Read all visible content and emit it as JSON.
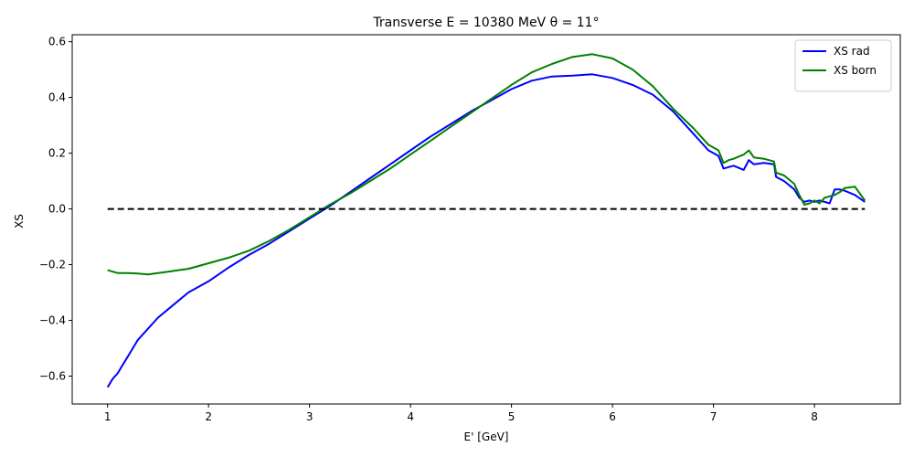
{
  "chart_data": {
    "type": "line",
    "title": "Transverse E = 10380 MeV θ = 11°",
    "xlabel": "E' [GeV]",
    "ylabel": "XS",
    "xlim": [
      0.65,
      8.85
    ],
    "ylim": [
      -0.7,
      0.625
    ],
    "xticks": [
      1,
      2,
      3,
      4,
      5,
      6,
      7,
      8
    ],
    "yticks": [
      -0.6,
      -0.4,
      -0.2,
      0.0,
      0.2,
      0.4,
      0.6
    ],
    "ytick_labels": [
      "−0.6",
      "−0.4",
      "−0.2",
      "0.0",
      "0.2",
      "0.4",
      "0.6"
    ],
    "grid": false,
    "legend_position": "top-right",
    "series": [
      {
        "name": "XS rad",
        "color": "#0000ff",
        "x": [
          1.0,
          1.05,
          1.1,
          1.15,
          1.2,
          1.3,
          1.4,
          1.5,
          1.6,
          1.7,
          1.8,
          1.9,
          2.0,
          2.2,
          2.4,
          2.6,
          2.8,
          3.0,
          3.2,
          3.4,
          3.6,
          3.8,
          4.0,
          4.2,
          4.4,
          4.6,
          4.8,
          5.0,
          5.2,
          5.4,
          5.6,
          5.8,
          6.0,
          6.2,
          6.4,
          6.6,
          6.8,
          6.95,
          7.05,
          7.1,
          7.15,
          7.2,
          7.3,
          7.35,
          7.4,
          7.5,
          7.6,
          7.62,
          7.7,
          7.8,
          7.85,
          7.9,
          7.95,
          8.0,
          8.05,
          8.1,
          8.15,
          8.2,
          8.25,
          8.3,
          8.4,
          8.5
        ],
        "y": [
          -0.64,
          -0.61,
          -0.59,
          -0.56,
          -0.53,
          -0.47,
          -0.43,
          -0.39,
          -0.36,
          -0.33,
          -0.3,
          -0.28,
          -0.26,
          -0.21,
          -0.165,
          -0.125,
          -0.08,
          -0.035,
          0.01,
          0.06,
          0.11,
          0.16,
          0.21,
          0.26,
          0.305,
          0.35,
          0.39,
          0.43,
          0.46,
          0.475,
          0.478,
          0.483,
          0.47,
          0.445,
          0.41,
          0.35,
          0.27,
          0.21,
          0.19,
          0.145,
          0.15,
          0.155,
          0.14,
          0.175,
          0.16,
          0.165,
          0.16,
          0.115,
          0.1,
          0.07,
          0.04,
          0.025,
          0.03,
          0.025,
          0.03,
          0.025,
          0.02,
          0.07,
          0.07,
          0.065,
          0.05,
          0.025
        ]
      },
      {
        "name": "XS born",
        "color": "#008000",
        "x": [
          1.0,
          1.05,
          1.1,
          1.2,
          1.3,
          1.4,
          1.5,
          1.6,
          1.7,
          1.8,
          1.9,
          2.0,
          2.2,
          2.4,
          2.6,
          2.8,
          3.0,
          3.2,
          3.4,
          3.6,
          3.8,
          4.0,
          4.2,
          4.4,
          4.6,
          4.8,
          5.0,
          5.2,
          5.4,
          5.6,
          5.8,
          6.0,
          6.2,
          6.4,
          6.6,
          6.8,
          6.95,
          7.05,
          7.1,
          7.15,
          7.2,
          7.3,
          7.35,
          7.4,
          7.5,
          7.6,
          7.62,
          7.7,
          7.8,
          7.85,
          7.9,
          7.95,
          8.0,
          8.05,
          8.1,
          8.15,
          8.2,
          8.25,
          8.3,
          8.4,
          8.5
        ],
        "y": [
          -0.22,
          -0.225,
          -0.23,
          -0.23,
          -0.232,
          -0.235,
          -0.23,
          -0.225,
          -0.22,
          -0.215,
          -0.205,
          -0.195,
          -0.175,
          -0.15,
          -0.115,
          -0.075,
          -0.03,
          0.015,
          0.055,
          0.1,
          0.145,
          0.195,
          0.245,
          0.295,
          0.345,
          0.395,
          0.445,
          0.49,
          0.52,
          0.545,
          0.555,
          0.54,
          0.5,
          0.44,
          0.36,
          0.29,
          0.23,
          0.21,
          0.165,
          0.175,
          0.18,
          0.195,
          0.21,
          0.185,
          0.18,
          0.17,
          0.13,
          0.12,
          0.09,
          0.05,
          0.015,
          0.02,
          0.03,
          0.02,
          0.04,
          0.045,
          0.05,
          0.06,
          0.075,
          0.08,
          0.03
        ]
      },
      {
        "name": "",
        "color": "#000000",
        "dashed": true,
        "x": [
          1.0,
          8.5
        ],
        "y": [
          0.0,
          0.0
        ]
      }
    ]
  }
}
